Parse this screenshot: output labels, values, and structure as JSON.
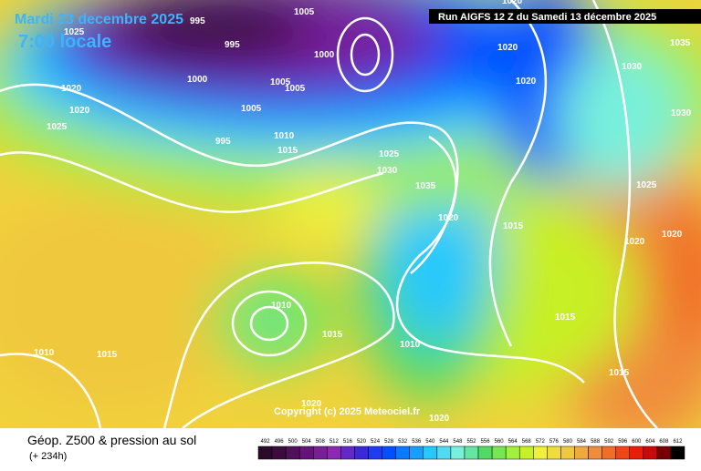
{
  "header": {
    "date": "Mardi 23 decembre 2025",
    "time": "7:00 locale",
    "run": "Run AIGFS 12 Z du Samedi 13 décembre 2025"
  },
  "footer": {
    "title": "Géop. Z500 & pression au sol",
    "lead": "(+ 234h)",
    "copyright": "Copyright (c) 2025 Meteociel.fr"
  },
  "legend": {
    "labels": [
      492,
      496,
      500,
      504,
      508,
      512,
      516,
      520,
      524,
      528,
      532,
      536,
      540,
      544,
      548,
      552,
      556,
      560,
      564,
      568,
      572,
      576,
      580,
      584,
      588,
      592,
      596,
      600,
      604,
      608,
      612
    ],
    "colors": [
      "#2a0a2a",
      "#3c0a3c",
      "#50105a",
      "#641478",
      "#781e96",
      "#8c28b4",
      "#6428c8",
      "#3c28dc",
      "#1e3cf0",
      "#0050ff",
      "#0a78ff",
      "#14a0ff",
      "#28c8ff",
      "#50dcf0",
      "#78f0dc",
      "#64e6a0",
      "#50dc64",
      "#78e650",
      "#a0f03c",
      "#c8f028",
      "#f0f03c",
      "#f0dc3c",
      "#f0c83c",
      "#f0aa3c",
      "#f08c3c",
      "#f06e28",
      "#f04614",
      "#e61e0a",
      "#c80a0a",
      "#780000",
      "#000000"
    ]
  },
  "isobar_labels": [
    995,
    995,
    1000,
    1005,
    1005,
    1005,
    1010,
    1015,
    1020,
    1025,
    1020,
    1025,
    1020,
    1000,
    1005,
    995,
    1025,
    1030,
    1035,
    1020,
    1015,
    1020,
    1010,
    1015,
    1010,
    1010,
    1015,
    1020,
    1020,
    1015,
    1030,
    1030,
    1035,
    1025,
    1020,
    1020,
    1015,
    1020
  ]
}
